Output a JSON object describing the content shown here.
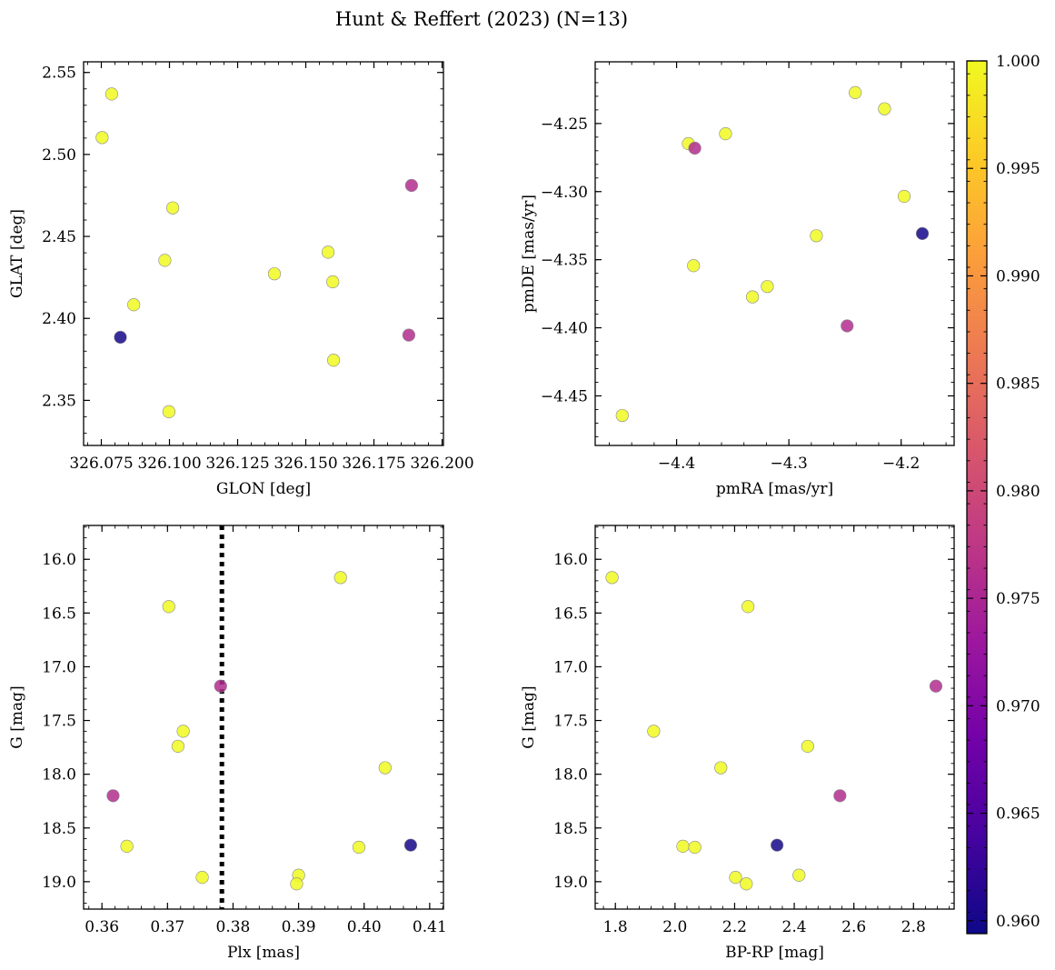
{
  "figure": {
    "title": "Hunt & Reffert (2023) (N=13)"
  },
  "colorbar": {
    "colormap": "plasma",
    "range": [
      0.9594,
      1.0
    ],
    "ticks": [
      0.96,
      0.965,
      0.97,
      0.975,
      0.98,
      0.985,
      0.99,
      0.995,
      1.0
    ],
    "tick_labels": [
      "0.960",
      "0.965",
      "0.970",
      "0.975",
      "0.980",
      "0.985",
      "0.990",
      "0.995",
      "1.000"
    ]
  },
  "colors": {
    "plasma_stops": [
      "#0d0887",
      "#46039f",
      "#7201a8",
      "#9c179e",
      "#bd3786",
      "#d8576b",
      "#ed7953",
      "#fb9f3a",
      "#fdca26",
      "#f0f921"
    ],
    "marker_edge": "#8a8a8a",
    "reference_line": "#000000"
  },
  "chart_data": [
    {
      "type": "scatter",
      "id": "glon-glat",
      "xlabel": "GLON [deg]",
      "ylabel": "GLAT [deg]",
      "xlim": [
        326.0685,
        326.2005
      ],
      "ylim": [
        2.3225,
        2.5565
      ],
      "xticks": [
        326.075,
        326.1,
        326.125,
        326.15,
        326.175,
        326.2
      ],
      "xtick_labels": [
        "326.075",
        "326.100",
        "326.125",
        "326.150",
        "326.175",
        "326.200"
      ],
      "yticks": [
        2.35,
        2.4,
        2.45,
        2.5,
        2.55
      ],
      "ytick_labels": [
        "2.35",
        "2.40",
        "2.45",
        "2.50",
        "2.55"
      ],
      "x": [
        326.0788,
        326.0753,
        326.1012,
        326.0983,
        326.0869,
        326.082,
        326.0998,
        326.1385,
        326.1582,
        326.1599,
        326.1602,
        326.1888,
        326.1878
      ],
      "y": [
        2.5369,
        2.5103,
        2.4674,
        2.4354,
        2.4083,
        2.3885,
        2.3431,
        2.4272,
        2.4404,
        2.4223,
        2.3745,
        2.4811,
        2.3898
      ],
      "probability": [
        1.0,
        1.0,
        1.0,
        1.0,
        1.0,
        0.96,
        1.0,
        1.0,
        1.0,
        1.0,
        1.0,
        0.976,
        0.976
      ]
    },
    {
      "type": "scatter",
      "id": "pmra-pmde",
      "xlabel": "pmRA [mas/yr]",
      "ylabel": "pmDE [mas/yr]",
      "xlim": [
        -4.4725,
        -4.1528
      ],
      "ylim": [
        -4.4864,
        -4.2047
      ],
      "xticks": [
        -4.4,
        -4.3,
        -4.2
      ],
      "xtick_labels": [
        "−4.4",
        "−4.3",
        "−4.2"
      ],
      "yticks": [
        -4.45,
        -4.4,
        -4.35,
        -4.3,
        -4.25
      ],
      "ytick_labels": [
        "−4.45",
        "−4.40",
        "−4.35",
        "−4.30",
        "−4.25"
      ],
      "x": [
        -4.2409,
        -4.2148,
        -4.3895,
        -4.3838,
        -4.3564,
        -4.1973,
        -4.2755,
        -4.1811,
        -4.3849,
        -4.3192,
        -4.3324,
        -4.2481,
        -4.4484
      ],
      "y": [
        -4.2273,
        -4.2392,
        -4.2648,
        -4.2681,
        -4.2575,
        -4.3035,
        -4.3324,
        -4.3308,
        -4.3544,
        -4.3697,
        -4.3773,
        -4.3986,
        -4.4644
      ],
      "probability": [
        1.0,
        1.0,
        1.0,
        0.976,
        1.0,
        1.0,
        1.0,
        0.96,
        1.0,
        1.0,
        1.0,
        0.976,
        1.0
      ]
    },
    {
      "type": "scatter",
      "id": "plx-g",
      "xlabel": "Plx [mas]",
      "ylabel": "G [mag]",
      "xlim": [
        0.3572,
        0.4121
      ],
      "ylim": [
        19.255,
        15.685
      ],
      "y_inverted": true,
      "xticks": [
        0.36,
        0.37,
        0.38,
        0.39,
        0.4,
        0.41
      ],
      "xtick_labels": [
        "0.36",
        "0.37",
        "0.38",
        "0.39",
        "0.40",
        "0.41"
      ],
      "yticks": [
        16.0,
        16.5,
        17.0,
        17.5,
        18.0,
        18.5,
        19.0
      ],
      "ytick_labels": [
        "16.0",
        "16.5",
        "17.0",
        "17.5",
        "18.0",
        "18.5",
        "19.0"
      ],
      "reference_x": 0.3783,
      "x": [
        0.3964,
        0.3702,
        0.3781,
        0.3724,
        0.3716,
        0.4032,
        0.3617,
        0.3638,
        0.3992,
        0.4071,
        0.3753,
        0.39,
        0.3897
      ],
      "y": [
        16.17,
        16.44,
        17.18,
        17.6,
        17.74,
        17.94,
        18.2,
        18.67,
        18.68,
        18.66,
        18.96,
        18.94,
        19.02
      ],
      "probability": [
        1.0,
        1.0,
        0.976,
        1.0,
        1.0,
        1.0,
        0.976,
        1.0,
        1.0,
        0.96,
        1.0,
        1.0,
        1.0
      ]
    },
    {
      "type": "scatter",
      "id": "bprp-g",
      "xlabel": "BP-RP [mag]",
      "ylabel": "G [mag]",
      "xlim": [
        1.7323,
        2.9363
      ],
      "ylim": [
        19.255,
        15.685
      ],
      "y_inverted": true,
      "xticks": [
        1.8,
        2.0,
        2.2,
        2.4,
        2.6,
        2.8
      ],
      "xtick_labels": [
        "1.8",
        "2.0",
        "2.2",
        "2.4",
        "2.6",
        "2.8"
      ],
      "yticks": [
        16.0,
        16.5,
        17.0,
        17.5,
        18.0,
        18.5,
        19.0
      ],
      "ytick_labels": [
        "16.0",
        "16.5",
        "17.0",
        "17.5",
        "18.0",
        "18.5",
        "19.0"
      ],
      "x": [
        1.7889,
        2.2449,
        2.8752,
        1.9285,
        2.445,
        2.1537,
        2.5532,
        2.0264,
        2.0666,
        2.3423,
        2.2031,
        2.4158,
        2.2391
      ],
      "y": [
        16.17,
        16.44,
        17.18,
        17.6,
        17.74,
        17.94,
        18.2,
        18.67,
        18.68,
        18.66,
        18.96,
        18.94,
        19.02
      ],
      "probability": [
        1.0,
        1.0,
        0.976,
        1.0,
        1.0,
        1.0,
        0.976,
        1.0,
        1.0,
        0.96,
        1.0,
        1.0,
        1.0
      ]
    }
  ]
}
